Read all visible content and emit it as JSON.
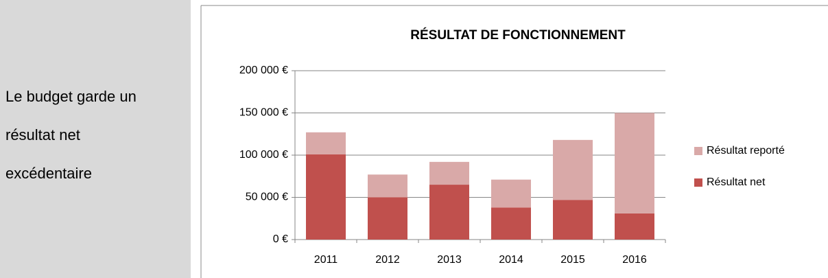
{
  "panel": {
    "lines": [
      "Le budget garde un",
      "résultat net",
      "excédentaire"
    ]
  },
  "chart_data": {
    "type": "stacked_bar",
    "title": "RÉSULTAT DE FONCTIONNEMENT",
    "categories": [
      "2011",
      "2012",
      "2013",
      "2014",
      "2015",
      "2016"
    ],
    "series": [
      {
        "name": "Résultat net",
        "color": "#c0504d",
        "values": [
          101000,
          50000,
          65000,
          38000,
          47000,
          31000
        ]
      },
      {
        "name": "Résultat reporté",
        "color": "#d9a9a8",
        "values": [
          26000,
          27000,
          27000,
          33000,
          71000,
          119000
        ]
      }
    ],
    "ylim": [
      0,
      200000
    ],
    "yticks": [
      {
        "value": 0,
        "label": "0 €"
      },
      {
        "value": 50000,
        "label": "50 000 €"
      },
      {
        "value": 100000,
        "label": "100 000 €"
      },
      {
        "value": 150000,
        "label": "150 000 €"
      },
      {
        "value": 200000,
        "label": "200 000 €"
      }
    ],
    "grid": true,
    "legend": "right"
  }
}
